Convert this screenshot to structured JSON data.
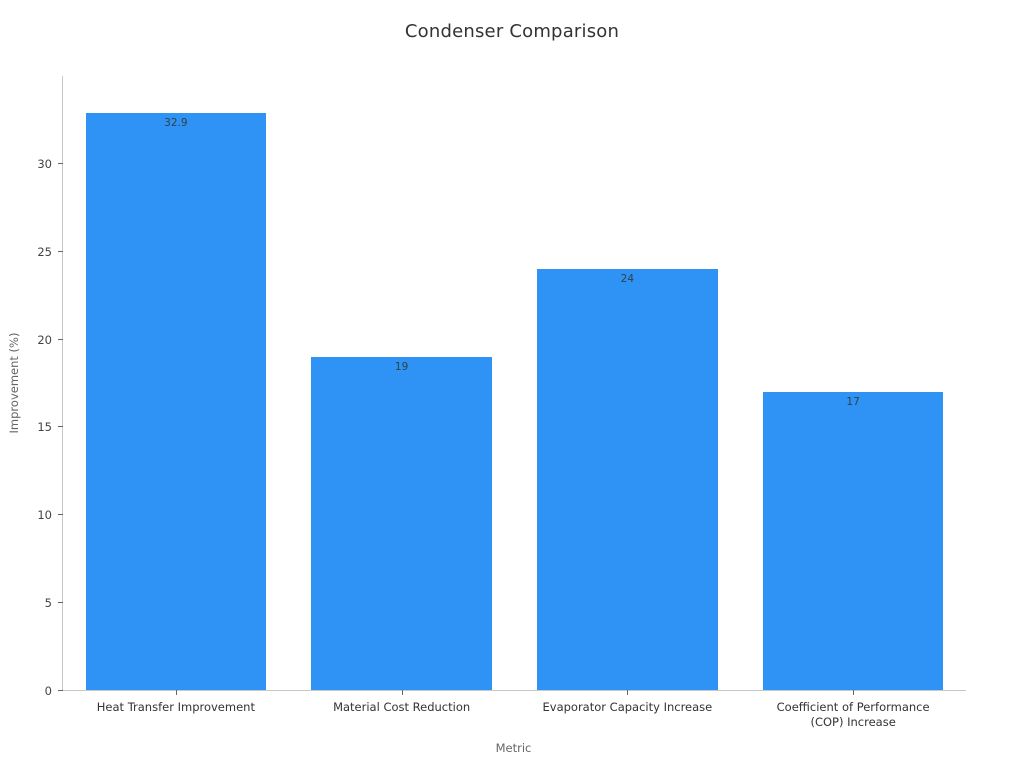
{
  "page": {
    "background": "#ffffff"
  },
  "chart_data": {
    "type": "bar",
    "title": "Condenser Comparison",
    "xlabel": "Metric",
    "ylabel": "Improvement (%)",
    "categories": [
      "Heat Transfer Improvement",
      "Material Cost Reduction",
      "Evaporator Capacity Increase",
      "Coefficient of Performance\n(COP) Increase"
    ],
    "values": [
      32.9,
      19,
      24,
      17
    ],
    "value_labels": [
      "32.9",
      "19",
      "24",
      "17"
    ],
    "yticks": [
      0,
      5,
      10,
      15,
      20,
      25,
      30
    ],
    "ylim": [
      0,
      35
    ],
    "bar_color": "#2e93f5",
    "bar_label_position": "inside-top",
    "grid": false,
    "legend": "none"
  }
}
